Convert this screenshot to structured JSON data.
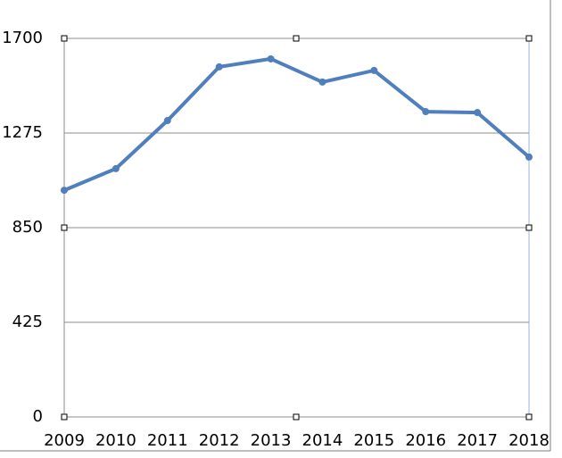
{
  "chart_data": {
    "type": "line",
    "categories": [
      "2009",
      "2010",
      "2011",
      "2012",
      "2013",
      "2014",
      "2015",
      "2016",
      "2017",
      "2018"
    ],
    "values": [
      1018,
      1115,
      1331,
      1572,
      1608,
      1504,
      1556,
      1371,
      1367,
      1167
    ],
    "color": "#4f7fbd",
    "ylim": [
      0,
      1700
    ],
    "yticks": [
      0,
      425,
      850,
      1275,
      1700
    ],
    "grid": true
  }
}
